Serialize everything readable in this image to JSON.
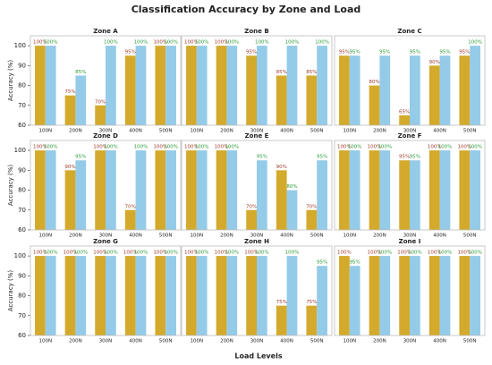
{
  "title": "Classification Accuracy by Zone and Load",
  "xlabel": "Load Levels",
  "chart_data": [
    {
      "type": "bar",
      "title": "Zone A",
      "ylabel": "Accuracy (%)",
      "categories": [
        "100N",
        "200N",
        "300N",
        "400N",
        "500N"
      ],
      "ylim": [
        60,
        105
      ],
      "yticks": [
        60,
        70,
        80,
        90,
        100
      ],
      "series": [
        {
          "color": "#d4aa2c",
          "label_color": "#a03c2c",
          "values": [
            100,
            75,
            70,
            95,
            100
          ],
          "value_labels": [
            "100%",
            "75%",
            "70%",
            "95%",
            "100%"
          ]
        },
        {
          "color": "#94cbe8",
          "label_color": "#2a9a3a",
          "values": [
            100,
            85,
            100,
            100,
            100
          ],
          "value_labels": [
            "100%",
            "85%",
            "100%",
            "100%",
            "100%"
          ]
        }
      ]
    },
    {
      "type": "bar",
      "title": "Zone B",
      "categories": [
        "100N",
        "200N",
        "300N",
        "400N",
        "500N"
      ],
      "ylim": [
        60,
        105
      ],
      "series": [
        {
          "color": "#d4aa2c",
          "label_color": "#a03c2c",
          "values": [
            100,
            100,
            95,
            85,
            85
          ],
          "value_labels": [
            "100%",
            "100%",
            "95%",
            "85%",
            "85%"
          ]
        },
        {
          "color": "#94cbe8",
          "label_color": "#2a9a3a",
          "values": [
            100,
            100,
            100,
            100,
            100
          ],
          "value_labels": [
            "100%",
            "100%",
            "100%",
            "100%",
            "100%"
          ]
        }
      ]
    },
    {
      "type": "bar",
      "title": "Zone C",
      "categories": [
        "100N",
        "200N",
        "300N",
        "400N",
        "500N"
      ],
      "ylim": [
        60,
        105
      ],
      "series": [
        {
          "color": "#d4aa2c",
          "label_color": "#a03c2c",
          "values": [
            95,
            80,
            65,
            90,
            95
          ],
          "value_labels": [
            "95%",
            "80%",
            "65%",
            "90%",
            "95%"
          ]
        },
        {
          "color": "#94cbe8",
          "label_color": "#2a9a3a",
          "values": [
            95,
            95,
            95,
            95,
            100
          ],
          "value_labels": [
            "95%",
            "95%",
            "95%",
            "95%",
            "100%"
          ]
        }
      ]
    },
    {
      "type": "bar",
      "title": "Zone D",
      "ylabel": "Accuracy (%)",
      "categories": [
        "100N",
        "200N",
        "300N",
        "400N",
        "500N"
      ],
      "ylim": [
        60,
        105
      ],
      "yticks": [
        60,
        70,
        80,
        90,
        100
      ],
      "series": [
        {
          "color": "#d4aa2c",
          "label_color": "#a03c2c",
          "values": [
            100,
            90,
            100,
            70,
            100
          ],
          "value_labels": [
            "100%",
            "90%",
            "100%",
            "70%",
            "100%"
          ]
        },
        {
          "color": "#94cbe8",
          "label_color": "#2a9a3a",
          "values": [
            100,
            95,
            100,
            100,
            100
          ],
          "value_labels": [
            "100%",
            "95%",
            "100%",
            "100%",
            "100%"
          ]
        }
      ]
    },
    {
      "type": "bar",
      "title": "Zone E",
      "categories": [
        "100N",
        "200N",
        "300N",
        "400N",
        "500N"
      ],
      "ylim": [
        60,
        105
      ],
      "series": [
        {
          "color": "#d4aa2c",
          "label_color": "#a03c2c",
          "values": [
            100,
            100,
            70,
            90,
            70
          ],
          "value_labels": [
            "100%",
            "100%",
            "70%",
            "90%",
            "70%"
          ]
        },
        {
          "color": "#94cbe8",
          "label_color": "#2a9a3a",
          "values": [
            100,
            100,
            95,
            80,
            95
          ],
          "value_labels": [
            "100%",
            "100%",
            "95%",
            "80%",
            "95%"
          ]
        }
      ]
    },
    {
      "type": "bar",
      "title": "Zone F",
      "categories": [
        "100N",
        "200N",
        "300N",
        "400N",
        "500N"
      ],
      "ylim": [
        60,
        105
      ],
      "series": [
        {
          "color": "#d4aa2c",
          "label_color": "#a03c2c",
          "values": [
            100,
            100,
            95,
            100,
            100
          ],
          "value_labels": [
            "100%",
            "100%",
            "95%",
            "100%",
            "100%"
          ]
        },
        {
          "color": "#94cbe8",
          "label_color": "#2a9a3a",
          "values": [
            100,
            100,
            95,
            100,
            100
          ],
          "value_labels": [
            "100%",
            "100%",
            "95%",
            "100%",
            "100%"
          ]
        }
      ]
    },
    {
      "type": "bar",
      "title": "Zone G",
      "ylabel": "Accuracy (%)",
      "categories": [
        "100N",
        "200N",
        "300N",
        "400N",
        "500N"
      ],
      "ylim": [
        60,
        105
      ],
      "yticks": [
        60,
        70,
        80,
        90,
        100
      ],
      "series": [
        {
          "color": "#d4aa2c",
          "label_color": "#a03c2c",
          "values": [
            100,
            100,
            100,
            100,
            100
          ],
          "value_labels": [
            "100%",
            "100%",
            "100%",
            "100%",
            "100%"
          ]
        },
        {
          "color": "#94cbe8",
          "label_color": "#2a9a3a",
          "values": [
            100,
            100,
            100,
            100,
            100
          ],
          "value_labels": [
            "100%",
            "100%",
            "100%",
            "100%",
            "100%"
          ]
        }
      ]
    },
    {
      "type": "bar",
      "title": "Zone H",
      "categories": [
        "100N",
        "200N",
        "300N",
        "400N",
        "500N"
      ],
      "ylim": [
        60,
        105
      ],
      "series": [
        {
          "color": "#d4aa2c",
          "label_color": "#a03c2c",
          "values": [
            100,
            100,
            100,
            75,
            75
          ],
          "value_labels": [
            "100%",
            "100%",
            "100%",
            "75%",
            "75%"
          ]
        },
        {
          "color": "#94cbe8",
          "label_color": "#2a9a3a",
          "values": [
            100,
            100,
            100,
            100,
            95
          ],
          "value_labels": [
            "100%",
            "100%",
            "100%",
            "100%",
            "95%"
          ]
        }
      ]
    },
    {
      "type": "bar",
      "title": "Zone I",
      "categories": [
        "100N",
        "200N",
        "300N",
        "400N",
        "500N"
      ],
      "ylim": [
        60,
        105
      ],
      "series": [
        {
          "color": "#d4aa2c",
          "label_color": "#a03c2c",
          "values": [
            100,
            100,
            100,
            100,
            100
          ],
          "value_labels": [
            "100%",
            "100%",
            "100%",
            "100%",
            "100%"
          ]
        },
        {
          "color": "#94cbe8",
          "label_color": "#2a9a3a",
          "values": [
            95,
            100,
            100,
            100,
            100
          ],
          "value_labels": [
            "95%",
            "100%",
            "100%",
            "100%",
            "100%"
          ]
        }
      ]
    }
  ]
}
